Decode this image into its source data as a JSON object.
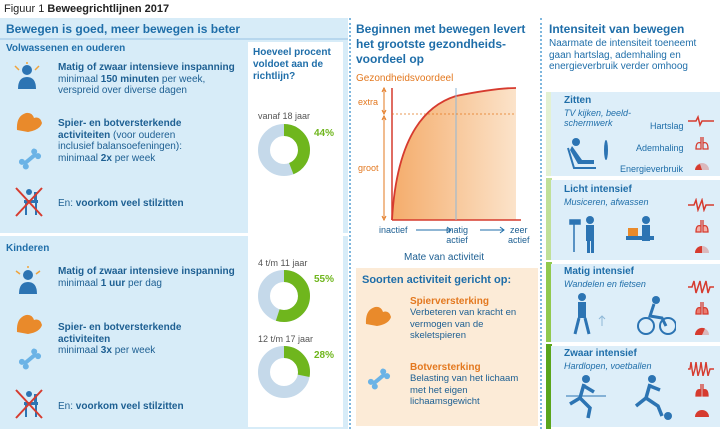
{
  "figure": {
    "prefix": "Figuur 1",
    "title": "Beweegrichtlijnen 2017"
  },
  "left": {
    "heading": "Bewegen is goed, meer bewegen is beter",
    "adults": {
      "label": "Volwassenen en ouderen",
      "items": [
        {
          "icon": "person-icon",
          "title": "Matig of zwaar intensieve inspanning",
          "line1": "minimaal ",
          "bold1": "150 minuten",
          "line1b": " per week,",
          "line2": "verspreid over diverse dagen"
        },
        {
          "icon": "muscle-icon",
          "title": "Spier- en botversterkende",
          "title2": "activiteiten",
          "rest1": " (voor ouderen",
          "rest2": "inclusief balansoefeningen):",
          "line3": "minimaal ",
          "bold3": "2x",
          "line3b": " per week"
        },
        {
          "icon": "no-sitting-icon",
          "text": "En: ",
          "bold": "voorkom veel stilzitten"
        }
      ]
    },
    "children": {
      "label": "Kinderen",
      "items": [
        {
          "icon": "child-icon",
          "title": "Matig of zwaar intensieve inspanning",
          "line1": "minimaal ",
          "bold1": "1 uur",
          "line1b": " per dag"
        },
        {
          "icon": "muscle-icon",
          "title": "Spier- en botversterkende",
          "title2": "activiteiten",
          "line3": "minimaal ",
          "bold3": "3x",
          "line3b": " per week"
        },
        {
          "icon": "no-sitting-icon",
          "text": "En: ",
          "bold": "voorkom veel stilzitten"
        }
      ]
    },
    "question": "Hoeveel procent voldoet aan de richtlijn?",
    "rings": [
      {
        "label": "vanaf 18 jaar",
        "value": "44%",
        "pct": 44
      },
      {
        "label": "4 t/m 11 jaar",
        "value": "55%",
        "pct": 55
      },
      {
        "label": "12 t/m 17 jaar",
        "value": "28%",
        "pct": 28
      }
    ]
  },
  "middle": {
    "title": "Beginnen met bewegen levert het grootste gezondheids-voordeel op",
    "ylabel": "Gezondheidsvoordeel",
    "y_extra": "extra",
    "y_groot": "groot",
    "x_inactief": "inactief",
    "x_matig": "matig\nactief",
    "x_zeer": "zeer\nactief",
    "xlabel": "Mate van activiteit",
    "soorten_title": "Soorten activiteit gericht op:",
    "spier_title": "Spierversterking",
    "spier_text": "Verbeteren van kracht en vermogen van de skeletspieren",
    "bot_title": "Botversterking",
    "bot_text": "Belasting van het lichaam met het eigen lichaamsgewicht"
  },
  "right": {
    "title": "Intensiteit van bewegen",
    "subtitle": "Naarmate de intensiteit toeneemt gaan hartslag, ademhaling en energieverbruik verder omhoog",
    "zitten": {
      "title": "Zitten",
      "sub": "TV kijken, beeld-schermwerk",
      "hart": "Hartslag",
      "adem": "Ademhaling",
      "energie": "Energieverbruik"
    },
    "licht": {
      "title": "Licht intensief",
      "sub": "Musiceren, afwassen"
    },
    "matig": {
      "title": "Matig intensief",
      "sub": "Wandelen en fietsen"
    },
    "zwaar": {
      "title": "Zwaar intensief",
      "sub": "Hardlopen, voetballen"
    }
  },
  "colors": {
    "green": "#6fb61d",
    "orange": "#e3781f",
    "blue": "#1f6ea9",
    "red": "#d63b2f"
  }
}
